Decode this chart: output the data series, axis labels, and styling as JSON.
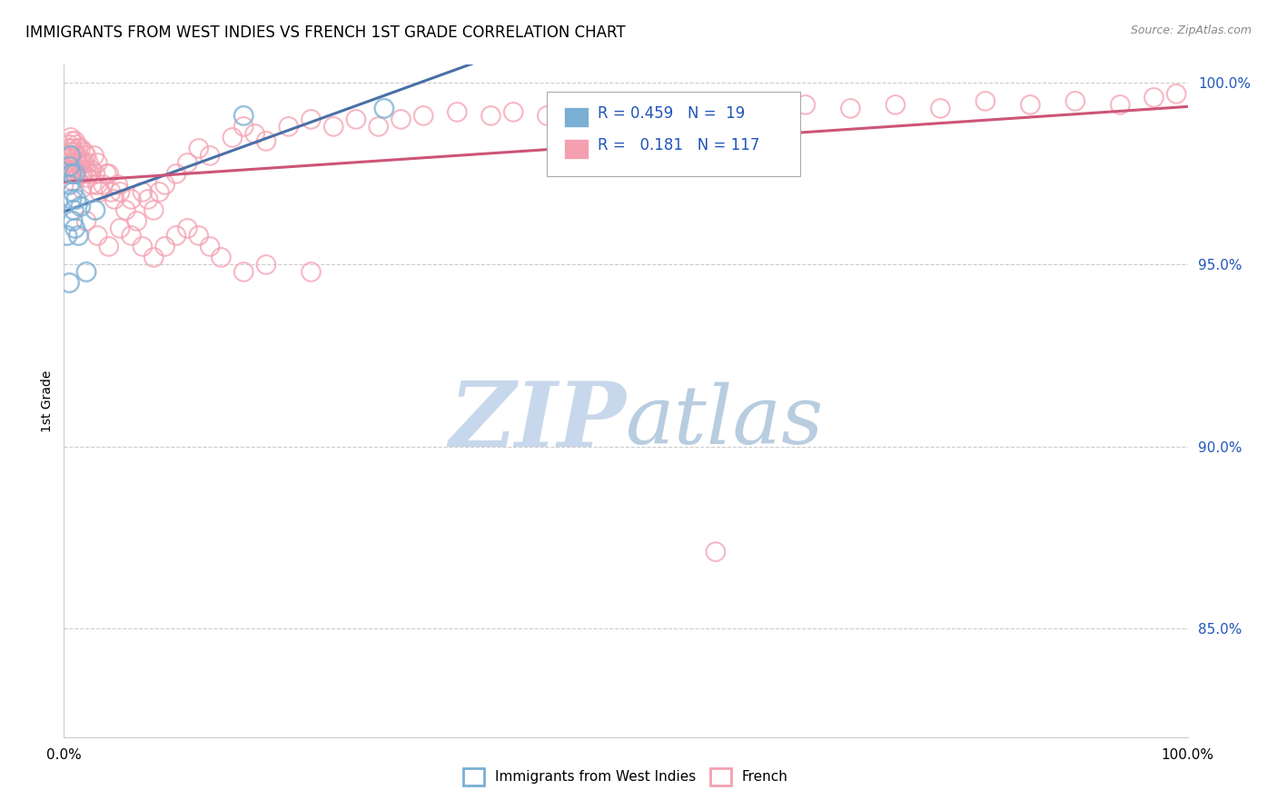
{
  "title": "IMMIGRANTS FROM WEST INDIES VS FRENCH 1ST GRADE CORRELATION CHART",
  "source": "Source: ZipAtlas.com",
  "ylabel": "1st Grade",
  "x_min": 0.0,
  "x_max": 1.0,
  "y_min": 0.82,
  "y_max": 1.005,
  "y_ticks": [
    0.85,
    0.9,
    0.95,
    1.0
  ],
  "y_ticklabels": [
    "85.0%",
    "90.0%",
    "95.0%",
    "100.0%"
  ],
  "grid_color": "#cccccc",
  "background_color": "#ffffff",
  "blue_color": "#7bafd4",
  "pink_color": "#f4a0b0",
  "blue_line_color": "#4a6fa5",
  "pink_line_color": "#cc5577",
  "R_blue": 0.459,
  "N_blue": 19,
  "R_pink": 0.181,
  "N_pink": 117,
  "legend_label_blue": "Immigrants from West Indies",
  "legend_label_pink": "French",
  "watermark_color": "#dde8f5",
  "watermark_fontsize": 72,
  "blue_x": [
    0.003,
    0.005,
    0.005,
    0.006,
    0.007,
    0.007,
    0.008,
    0.008,
    0.009,
    0.01,
    0.01,
    0.011,
    0.013,
    0.015,
    0.02,
    0.028,
    0.16,
    0.285,
    0.005
  ],
  "blue_y": [
    0.958,
    0.977,
    0.972,
    0.98,
    0.975,
    0.968,
    0.97,
    0.962,
    0.965,
    0.975,
    0.96,
    0.968,
    0.958,
    0.966,
    0.948,
    0.965,
    0.991,
    0.993,
    0.945
  ],
  "pink_x": [
    0.002,
    0.003,
    0.004,
    0.004,
    0.005,
    0.005,
    0.005,
    0.006,
    0.006,
    0.006,
    0.007,
    0.007,
    0.007,
    0.008,
    0.008,
    0.008,
    0.009,
    0.009,
    0.01,
    0.01,
    0.01,
    0.011,
    0.011,
    0.012,
    0.012,
    0.013,
    0.013,
    0.014,
    0.015,
    0.015,
    0.016,
    0.016,
    0.017,
    0.017,
    0.018,
    0.019,
    0.02,
    0.02,
    0.021,
    0.022,
    0.023,
    0.025,
    0.025,
    0.027,
    0.028,
    0.03,
    0.03,
    0.032,
    0.035,
    0.038,
    0.04,
    0.042,
    0.045,
    0.048,
    0.05,
    0.055,
    0.06,
    0.065,
    0.07,
    0.075,
    0.08,
    0.085,
    0.09,
    0.1,
    0.11,
    0.12,
    0.13,
    0.15,
    0.16,
    0.17,
    0.18,
    0.2,
    0.22,
    0.24,
    0.26,
    0.28,
    0.3,
    0.32,
    0.35,
    0.38,
    0.4,
    0.43,
    0.46,
    0.5,
    0.54,
    0.58,
    0.62,
    0.66,
    0.7,
    0.74,
    0.78,
    0.82,
    0.86,
    0.9,
    0.94,
    0.97,
    0.99,
    0.02,
    0.03,
    0.04,
    0.05,
    0.06,
    0.07,
    0.08,
    0.09,
    0.1,
    0.11,
    0.12,
    0.13,
    0.14,
    0.16,
    0.18,
    0.22,
    0.58
  ],
  "pink_y": [
    0.975,
    0.978,
    0.98,
    0.982,
    0.983,
    0.979,
    0.977,
    0.985,
    0.981,
    0.976,
    0.984,
    0.98,
    0.975,
    0.982,
    0.978,
    0.973,
    0.981,
    0.977,
    0.984,
    0.98,
    0.976,
    0.983,
    0.978,
    0.98,
    0.976,
    0.982,
    0.978,
    0.975,
    0.982,
    0.978,
    0.975,
    0.971,
    0.978,
    0.975,
    0.981,
    0.978,
    0.98,
    0.976,
    0.974,
    0.978,
    0.975,
    0.972,
    0.976,
    0.98,
    0.975,
    0.978,
    0.972,
    0.97,
    0.972,
    0.975,
    0.975,
    0.97,
    0.968,
    0.972,
    0.97,
    0.965,
    0.968,
    0.962,
    0.97,
    0.968,
    0.965,
    0.97,
    0.972,
    0.975,
    0.978,
    0.982,
    0.98,
    0.985,
    0.988,
    0.986,
    0.984,
    0.988,
    0.99,
    0.988,
    0.99,
    0.988,
    0.99,
    0.991,
    0.992,
    0.991,
    0.992,
    0.991,
    0.993,
    0.992,
    0.993,
    0.992,
    0.993,
    0.994,
    0.993,
    0.994,
    0.993,
    0.995,
    0.994,
    0.995,
    0.994,
    0.996,
    0.997,
    0.962,
    0.958,
    0.955,
    0.96,
    0.958,
    0.955,
    0.952,
    0.955,
    0.958,
    0.96,
    0.958,
    0.955,
    0.952,
    0.948,
    0.95,
    0.948,
    0.871
  ]
}
